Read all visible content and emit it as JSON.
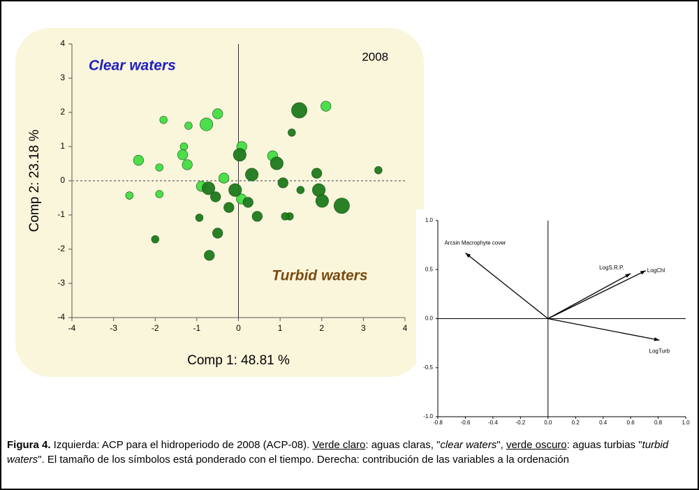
{
  "chart_data": [
    {
      "type": "scatter",
      "xlabel": "Comp 1: 48.81 %",
      "ylabel": "Comp 2: 23.18 %",
      "xlim": [
        -4,
        4
      ],
      "ylim": [
        -4,
        4
      ],
      "xticks": [
        -4,
        -3,
        -2,
        -1,
        0,
        1,
        2,
        3,
        4
      ],
      "yticks": [
        -4,
        -3,
        -2,
        -1,
        0,
        1,
        2,
        3,
        4
      ],
      "annotations": [
        {
          "text": "2008",
          "x": 3.6,
          "y": 3.6,
          "color": "#000000"
        },
        {
          "text": "Clear waters",
          "x": -3.6,
          "y": 3.35,
          "color": "#2020c0"
        },
        {
          "text": "Turbid waters",
          "x": 0.8,
          "y": -2.8,
          "color": "#7a4a10"
        }
      ],
      "series": [
        {
          "color": "#44dd44",
          "x": [
            -0.5,
            -0.77,
            -1.2,
            -1.8,
            2.1,
            -1.31,
            -1.34,
            -1.23,
            -1.9,
            -2.4,
            0.08,
            -0.35,
            -0.89,
            0.07,
            -2.62,
            -1.9,
            0.82
          ],
          "values": [
            1.96,
            1.65,
            1.61,
            1.78,
            2.18,
            1.0,
            0.76,
            0.47,
            0.39,
            0.6,
            1.0,
            0.08,
            -0.16,
            -0.53,
            -0.43,
            -0.39,
            0.73
          ],
          "sizes": [
            3,
            4,
            2,
            2,
            3,
            2,
            3,
            3,
            2,
            3,
            3,
            3,
            3,
            3,
            2,
            2,
            3
          ]
        },
        {
          "color": "#1e7a1e",
          "x": [
            1.46,
            1.28,
            0.03,
            0.32,
            -0.08,
            -0.72,
            -0.55,
            -0.23,
            0.23,
            0.45,
            0.92,
            1.07,
            1.49,
            1.88,
            1.93,
            2.01,
            2.48,
            1.23,
            1.12,
            -0.5,
            -0.7,
            -2.0,
            3.36,
            -0.94
          ],
          "values": [
            2.06,
            1.41,
            0.76,
            0.18,
            -0.27,
            -0.22,
            -0.47,
            -0.78,
            -0.63,
            -1.04,
            0.51,
            -0.06,
            -0.27,
            0.22,
            -0.27,
            -0.59,
            -0.73,
            -1.04,
            -1.04,
            -1.53,
            -2.18,
            -1.71,
            0.31,
            -1.08
          ],
          "sizes": [
            5,
            2,
            4,
            4,
            4,
            4,
            3,
            3,
            3,
            3,
            4,
            3,
            2,
            3,
            4,
            4,
            5,
            2,
            2,
            3,
            3,
            2,
            2,
            2
          ]
        }
      ]
    },
    {
      "type": "biplot",
      "xlim": [
        -0.8,
        1.0
      ],
      "ylim": [
        -1.0,
        1.0
      ],
      "xticks": [
        -0.8,
        -0.6,
        -0.4,
        -0.2,
        {
          "value": 0,
          "label": "0.0"
        },
        0.2,
        0.4,
        0.6,
        0.8,
        {
          "value": 1,
          "label": "1.0"
        }
      ],
      "yticks": [
        {
          "value": 1,
          "label": "1.0"
        },
        0.5,
        {
          "value": 0,
          "label": "0.0"
        },
        -0.5,
        {
          "value": -1,
          "label": "-1.0"
        }
      ],
      "vectors": [
        {
          "label": "Arcsin Macrophyte cover",
          "x": -0.6,
          "y": 0.67
        },
        {
          "label": "LogS.R.P.",
          "x": 0.6,
          "y": 0.46
        },
        {
          "label": "LogChl",
          "x": 0.71,
          "y": 0.49
        },
        {
          "label": "LogTurb",
          "x": 0.81,
          "y": -0.22
        }
      ]
    }
  ],
  "caption": [
    {
      "text": "Figura 4.",
      "style": "bold"
    },
    {
      "text": " Izquierda: ACP para el hidroperiodo de 2008 (ACP-08). ",
      "style": "plain"
    },
    {
      "text": "Verde claro",
      "style": "underline"
    },
    {
      "text": ": aguas claras, \"",
      "style": "plain"
    },
    {
      "text": "clear waters",
      "style": "italic"
    },
    {
      "text": "\", ",
      "style": "plain"
    },
    {
      "text": "verde oscuro",
      "style": "underline"
    },
    {
      "text": ": aguas turbias \"",
      "style": "plain"
    },
    {
      "text": "turbid waters",
      "style": "italic"
    },
    {
      "text": "\". El tamaño de los símbolos está ponderado con el tiempo. Derecha: contribución de las variables a la ordenación",
      "style": "plain"
    }
  ]
}
